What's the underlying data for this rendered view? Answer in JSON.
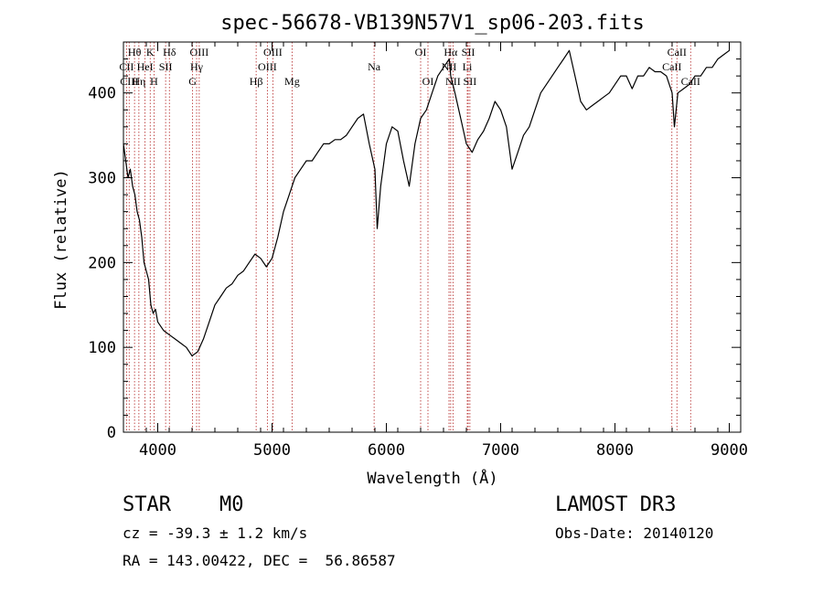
{
  "chart_data": {
    "type": "line",
    "title": "spec-56678-VB139N57V1_sp06-203.fits",
    "xlabel": "Wavelength (Å)",
    "ylabel": "Flux (relative)",
    "xlim": [
      3700,
      9100
    ],
    "ylim": [
      0,
      460
    ],
    "xticks": [
      4000,
      5000,
      6000,
      7000,
      8000,
      9000
    ],
    "yticks": [
      0,
      100,
      200,
      300,
      400
    ],
    "series": [
      {
        "name": "flux",
        "x": [
          3700,
          3720,
          3740,
          3760,
          3780,
          3800,
          3820,
          3840,
          3860,
          3880,
          3900,
          3920,
          3940,
          3960,
          3980,
          4000,
          4050,
          4100,
          4150,
          4200,
          4250,
          4300,
          4350,
          4400,
          4450,
          4500,
          4550,
          4600,
          4650,
          4700,
          4750,
          4800,
          4850,
          4900,
          4950,
          5000,
          5050,
          5100,
          5150,
          5200,
          5250,
          5300,
          5350,
          5400,
          5450,
          5500,
          5550,
          5600,
          5650,
          5700,
          5750,
          5800,
          5850,
          5900,
          5920,
          5950,
          6000,
          6050,
          6100,
          6150,
          6200,
          6250,
          6300,
          6350,
          6400,
          6450,
          6500,
          6550,
          6563,
          6600,
          6650,
          6700,
          6750,
          6800,
          6850,
          6900,
          6950,
          7000,
          7050,
          7100,
          7150,
          7200,
          7250,
          7300,
          7350,
          7400,
          7450,
          7500,
          7550,
          7600,
          7650,
          7700,
          7750,
          7800,
          7850,
          7900,
          7950,
          8000,
          8050,
          8100,
          8150,
          8200,
          8250,
          8300,
          8350,
          8400,
          8450,
          8500,
          8520,
          8550,
          8600,
          8650,
          8700,
          8750,
          8800,
          8850,
          8900,
          8950,
          9000
        ],
        "values": [
          340,
          320,
          300,
          310,
          290,
          280,
          260,
          250,
          230,
          200,
          190,
          180,
          150,
          140,
          145,
          130,
          120,
          115,
          110,
          105,
          100,
          90,
          95,
          110,
          130,
          150,
          160,
          170,
          175,
          185,
          190,
          200,
          210,
          205,
          195,
          205,
          230,
          260,
          280,
          300,
          310,
          320,
          320,
          330,
          340,
          340,
          345,
          345,
          350,
          360,
          370,
          375,
          340,
          310,
          240,
          290,
          340,
          360,
          355,
          320,
          290,
          340,
          370,
          380,
          400,
          420,
          430,
          440,
          420,
          400,
          370,
          340,
          330,
          345,
          355,
          370,
          390,
          380,
          360,
          310,
          330,
          350,
          360,
          380,
          400,
          410,
          420,
          430,
          440,
          450,
          420,
          390,
          380,
          385,
          390,
          395,
          400,
          410,
          420,
          420,
          405,
          420,
          420,
          430,
          425,
          425,
          420,
          400,
          360,
          400,
          405,
          410,
          420,
          420,
          430,
          430,
          440,
          445,
          450
        ]
      }
    ],
    "lines": [
      {
        "name": "CII",
        "x": 3727,
        "row": 1
      },
      {
        "name": "CIII",
        "x": 3750,
        "row": 2
      },
      {
        "name": "Hθ",
        "x": 3797,
        "row": 0
      },
      {
        "name": "Hη",
        "x": 3835,
        "row": 2
      },
      {
        "name": "HeI",
        "x": 3889,
        "row": 1
      },
      {
        "name": "K",
        "x": 3934,
        "row": 0
      },
      {
        "name": "H",
        "x": 3968,
        "row": 2
      },
      {
        "name": "SII",
        "x": 4069,
        "row": 1
      },
      {
        "name": "Hδ",
        "x": 4102,
        "row": 0
      },
      {
        "name": "G",
        "x": 4305,
        "row": 2
      },
      {
        "name": "Hγ",
        "x": 4340,
        "row": 1
      },
      {
        "name": "OIII",
        "x": 4363,
        "row": 0
      },
      {
        "name": "Hβ",
        "x": 4861,
        "row": 2
      },
      {
        "name": "OIII",
        "x": 4959,
        "row": 1
      },
      {
        "name": "OIII",
        "x": 5007,
        "row": 0
      },
      {
        "name": "Mg",
        "x": 5175,
        "row": 2
      },
      {
        "name": "Na",
        "x": 5893,
        "row": 1
      },
      {
        "name": "OI",
        "x": 6300,
        "row": 0
      },
      {
        "name": "OI",
        "x": 6364,
        "row": 2
      },
      {
        "name": "NII",
        "x": 6548,
        "row": 1
      },
      {
        "name": "Hα",
        "x": 6563,
        "row": 0
      },
      {
        "name": "NII",
        "x": 6583,
        "row": 2
      },
      {
        "name": "Li",
        "x": 6708,
        "row": 1
      },
      {
        "name": "SII",
        "x": 6716,
        "row": 0
      },
      {
        "name": "SII",
        "x": 6731,
        "row": 2
      },
      {
        "name": "CaII",
        "x": 8498,
        "row": 1
      },
      {
        "name": "CaII",
        "x": 8542,
        "row": 0
      },
      {
        "name": "CaII",
        "x": 8662,
        "row": 2
      }
    ]
  },
  "info": {
    "class": "STAR",
    "subclass": "M0",
    "survey": "LAMOST DR3",
    "redshift": "cz = -39.3 ± 1.2 km/s",
    "obs_date": "Obs-Date: 20140120",
    "coords": "RA = 143.00422, DEC =  56.86587"
  }
}
